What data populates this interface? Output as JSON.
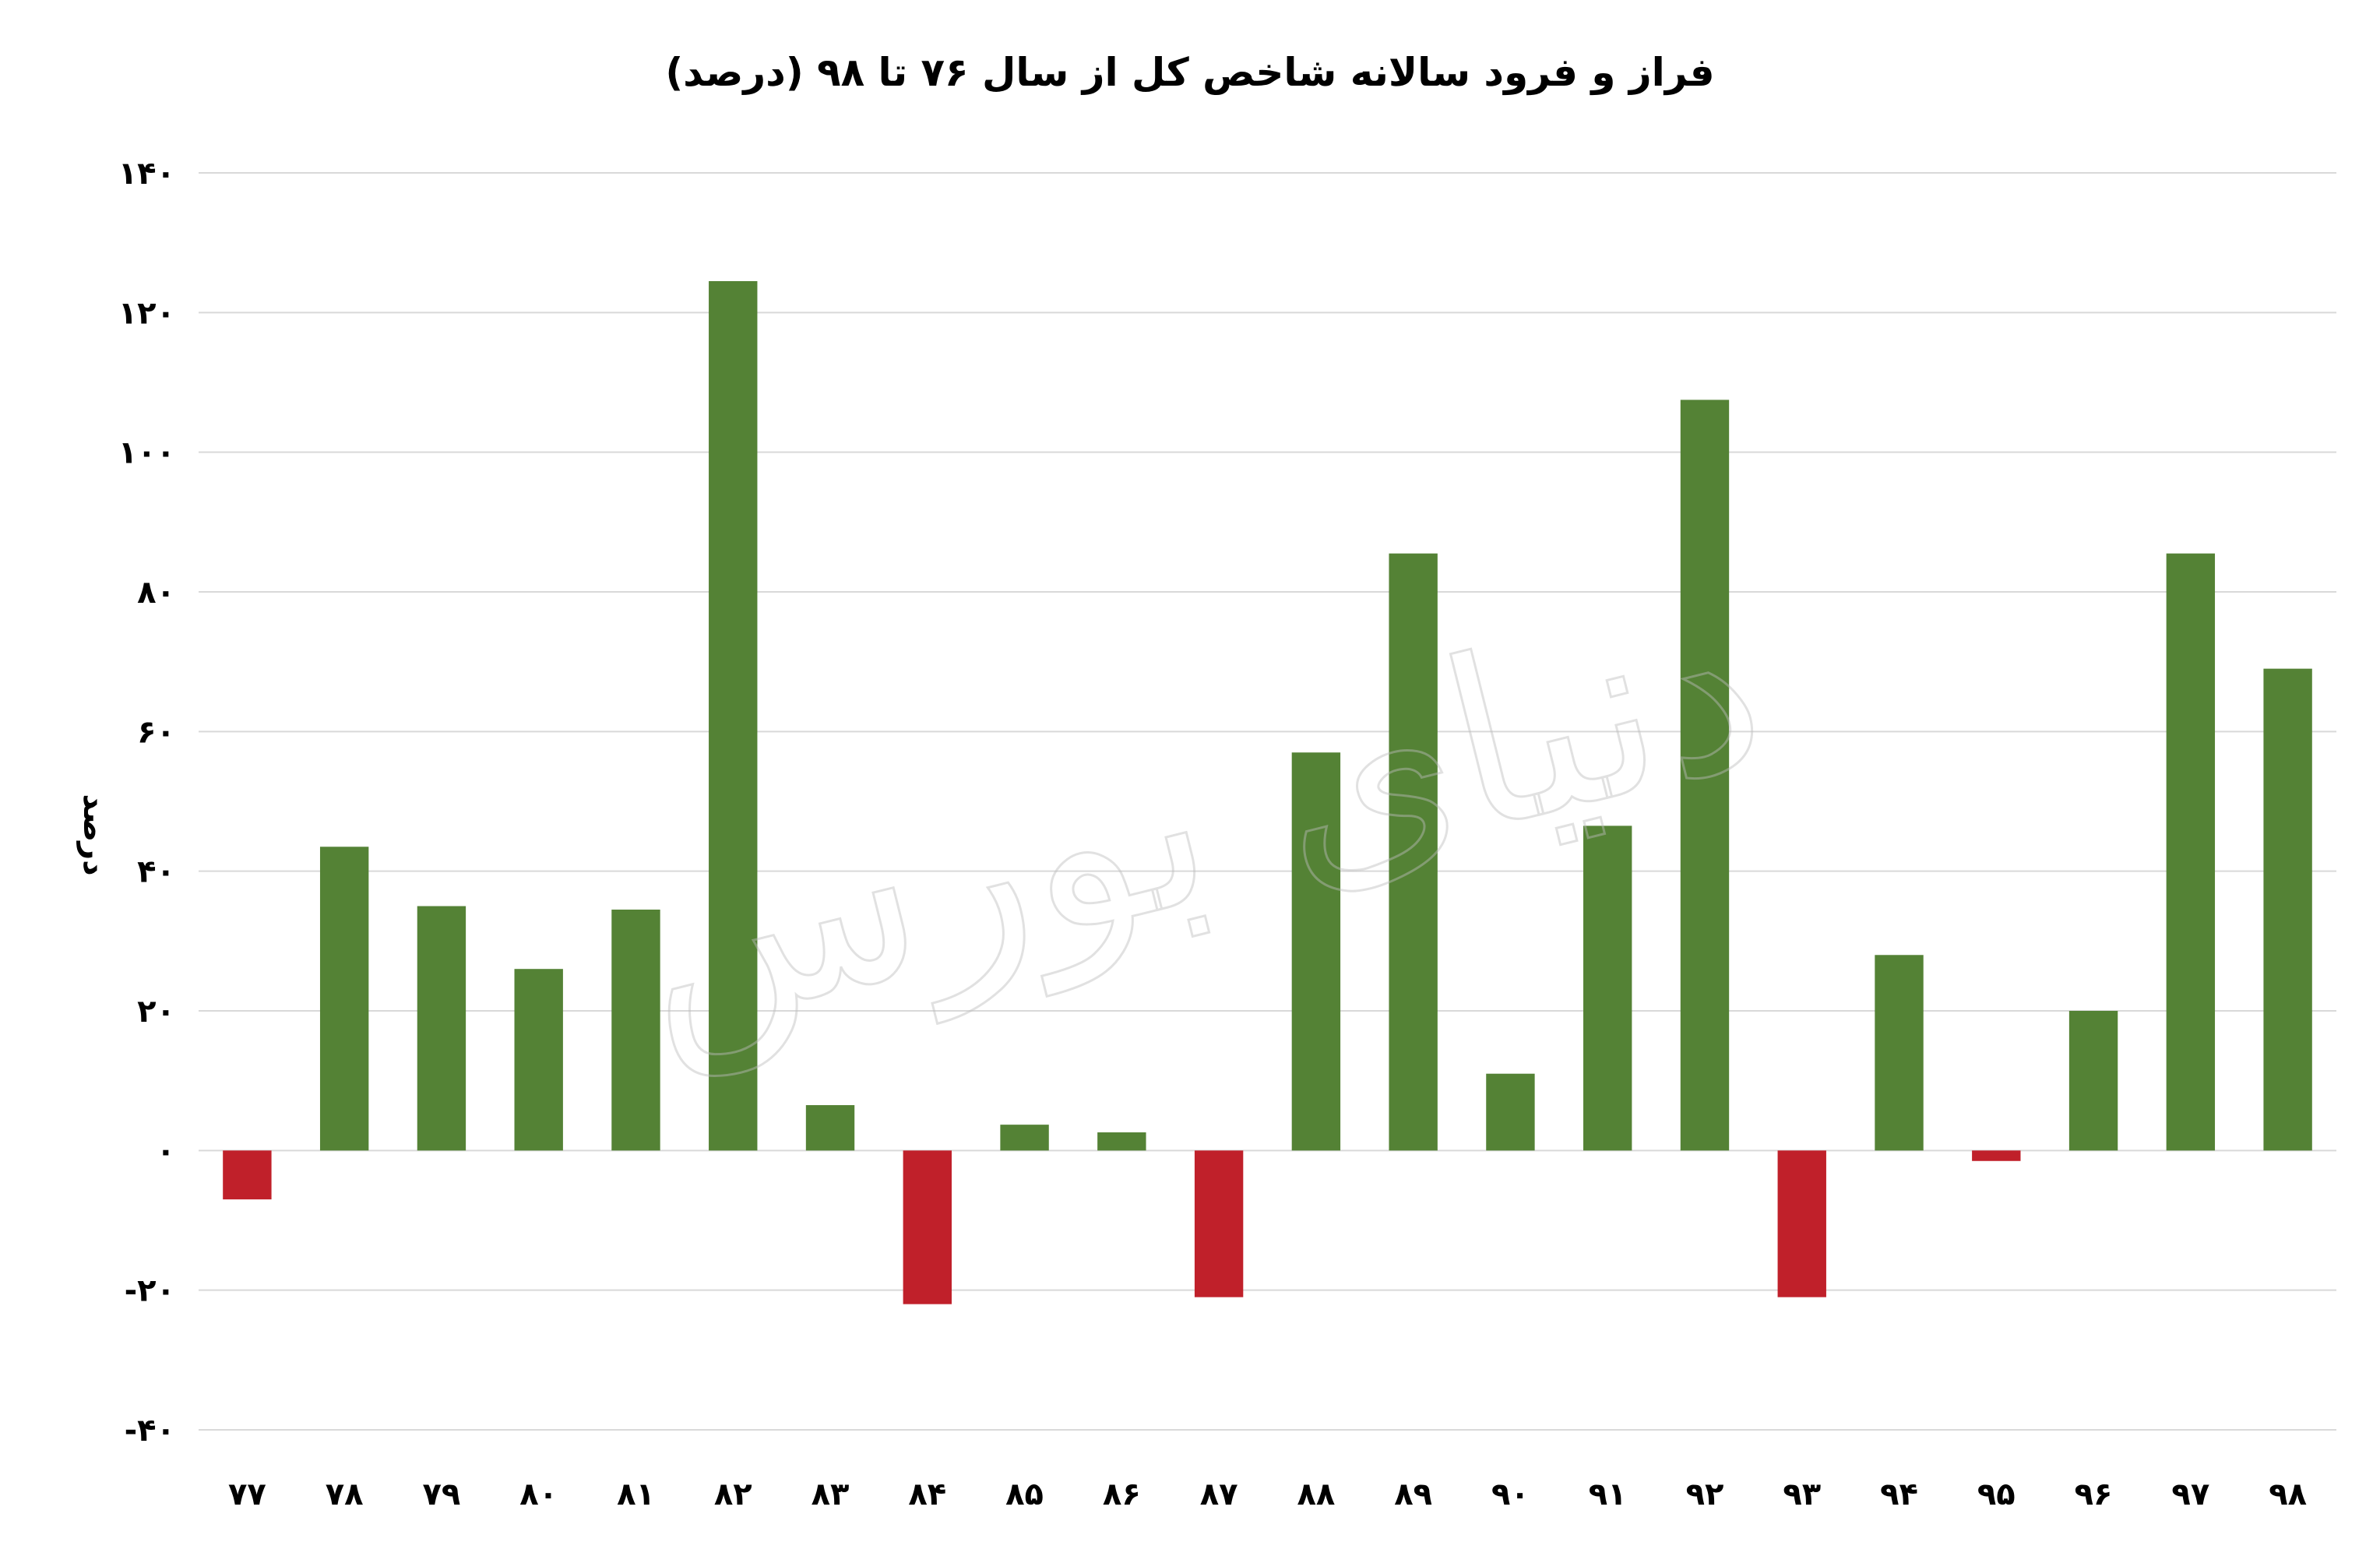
{
  "chart_data": {
    "type": "bar",
    "title": "فراز و فرود سالانه شاخص کل از سال ۷۶ تا ۹۸ (درصد)",
    "xlabel": "",
    "ylabel": "درصد",
    "ylim": [
      -40,
      140
    ],
    "yticks": [
      -40,
      -20,
      0,
      20,
      40,
      60,
      80,
      100,
      120,
      140
    ],
    "ytick_labels": [
      "-۴۰",
      "-۲۰",
      "۰",
      "۲۰",
      "۴۰",
      "۶۰",
      "۸۰",
      "۱۰۰",
      "۱۲۰",
      "۱۴۰"
    ],
    "grid": true,
    "legend": "none",
    "categories": [
      "۷۷",
      "۷۸",
      "۷۹",
      "۸۰",
      "۸۱",
      "۸۲",
      "۸۳",
      "۸۴",
      "۸۵",
      "۸۶",
      "۸۷",
      "۸۸",
      "۸۹",
      "۹۰",
      "۹۱",
      "۹۲",
      "۹۳",
      "۹۴",
      "۹۵",
      "۹۶",
      "۹۷",
      "۹۸"
    ],
    "values": [
      -7,
      43.5,
      35,
      26,
      34.5,
      124.5,
      6.5,
      -22,
      3.7,
      2.6,
      -21,
      57,
      85.5,
      11,
      46.5,
      107.5,
      -21,
      28,
      -1.5,
      20,
      85.5,
      69
    ],
    "colors": {
      "positive": "#548235",
      "negative": "#c0202a"
    }
  },
  "watermark": "دنیای بورس"
}
